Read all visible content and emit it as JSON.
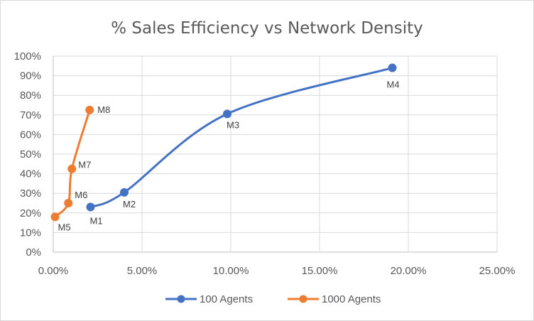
{
  "chart_data": {
    "type": "scatter",
    "title": "% Sales Efficiency vs Network Density",
    "xlabel": "",
    "ylabel": "",
    "xlim": [
      0,
      0.25
    ],
    "ylim": [
      0,
      1.0
    ],
    "x_ticks": [
      "0.00%",
      "5.00%",
      "10.00%",
      "15.00%",
      "20.00%",
      "25.00%"
    ],
    "y_ticks": [
      "0%",
      "10%",
      "20%",
      "30%",
      "40%",
      "50%",
      "60%",
      "70%",
      "80%",
      "90%",
      "100%"
    ],
    "grid": true,
    "legend_position": "bottom",
    "smoothed_lines": true,
    "series": [
      {
        "name": "100 Agents",
        "color": "#4472c4",
        "points": [
          {
            "label": "M1",
            "x": 0.021,
            "y": 0.23
          },
          {
            "label": "M2",
            "x": 0.04,
            "y": 0.305
          },
          {
            "label": "M3",
            "x": 0.098,
            "y": 0.705
          },
          {
            "label": "M4",
            "x": 0.191,
            "y": 0.94
          }
        ]
      },
      {
        "name": "1000 Agents",
        "color": "#ed7d31",
        "points": [
          {
            "label": "M5",
            "x": 0.001,
            "y": 0.18
          },
          {
            "label": "M6",
            "x": 0.0085,
            "y": 0.25
          },
          {
            "label": "M7",
            "x": 0.0105,
            "y": 0.425
          },
          {
            "label": "M8",
            "x": 0.0205,
            "y": 0.725
          }
        ]
      }
    ]
  }
}
